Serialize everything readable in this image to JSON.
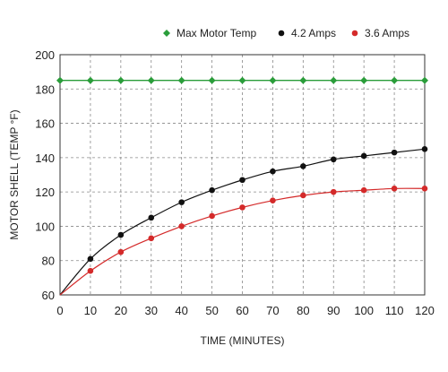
{
  "chart_data": {
    "type": "line",
    "xlabel": "TIME (MINUTES)",
    "ylabel": "MOTOR SHELL (TEMP °F)",
    "xlim": [
      0,
      120
    ],
    "ylim": [
      60,
      200
    ],
    "x_ticks": [
      0,
      10,
      20,
      30,
      40,
      50,
      60,
      70,
      80,
      90,
      100,
      110,
      120
    ],
    "y_ticks": [
      60,
      80,
      100,
      120,
      140,
      160,
      180,
      200
    ],
    "grid": true,
    "grid_style": "dashed",
    "legend_position": "top-right",
    "series": [
      {
        "name": "Max Motor Temp",
        "color": "#2a9d3a",
        "marker": "diamond",
        "x": [
          0,
          10,
          20,
          30,
          40,
          50,
          60,
          70,
          80,
          90,
          100,
          110,
          120
        ],
        "values": [
          185,
          185,
          185,
          185,
          185,
          185,
          185,
          185,
          185,
          185,
          185,
          185,
          185
        ]
      },
      {
        "name": "4.2 Amps",
        "color": "#111111",
        "marker": "circle",
        "x": [
          0,
          10,
          20,
          30,
          40,
          50,
          60,
          70,
          80,
          90,
          100,
          110,
          120
        ],
        "values": [
          60,
          81,
          95,
          105,
          114,
          121,
          127,
          132,
          135,
          139,
          141,
          143,
          145
        ]
      },
      {
        "name": "3.6 Amps",
        "color": "#d42a2a",
        "marker": "circle",
        "x": [
          0,
          10,
          20,
          30,
          40,
          50,
          60,
          70,
          80,
          90,
          100,
          110,
          120
        ],
        "values": [
          60,
          74,
          85,
          93,
          100,
          106,
          111,
          115,
          118,
          120,
          121,
          122,
          122
        ]
      }
    ]
  }
}
